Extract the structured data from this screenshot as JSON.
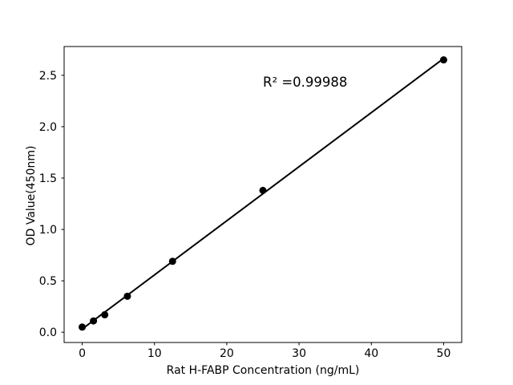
{
  "chart_data": {
    "type": "scatter",
    "title": "",
    "xlabel": "Rat H-FABP Concentration (ng/mL)",
    "ylabel": "OD Value(450nm)",
    "x": [
      0,
      1.56,
      3.12,
      6.25,
      12.5,
      25,
      50
    ],
    "y": [
      0.05,
      0.11,
      0.17,
      0.35,
      0.69,
      1.38,
      2.65
    ],
    "fit": {
      "type": "linear",
      "r_squared": 0.99988
    },
    "annotation": {
      "text": "R² =0.99988"
    },
    "xticks": [
      "0",
      "10",
      "20",
      "30",
      "40",
      "50"
    ],
    "yticks": [
      "0.0",
      "0.5",
      "1.0",
      "1.5",
      "2.0",
      "2.5"
    ],
    "xlim": [
      -2.5,
      52.5
    ],
    "ylim": [
      -0.1,
      2.78
    ],
    "grid": false,
    "legend": null,
    "marker_color": "#000000",
    "line_color": "#000000",
    "axis_color": "#000000",
    "background": "#ffffff"
  }
}
